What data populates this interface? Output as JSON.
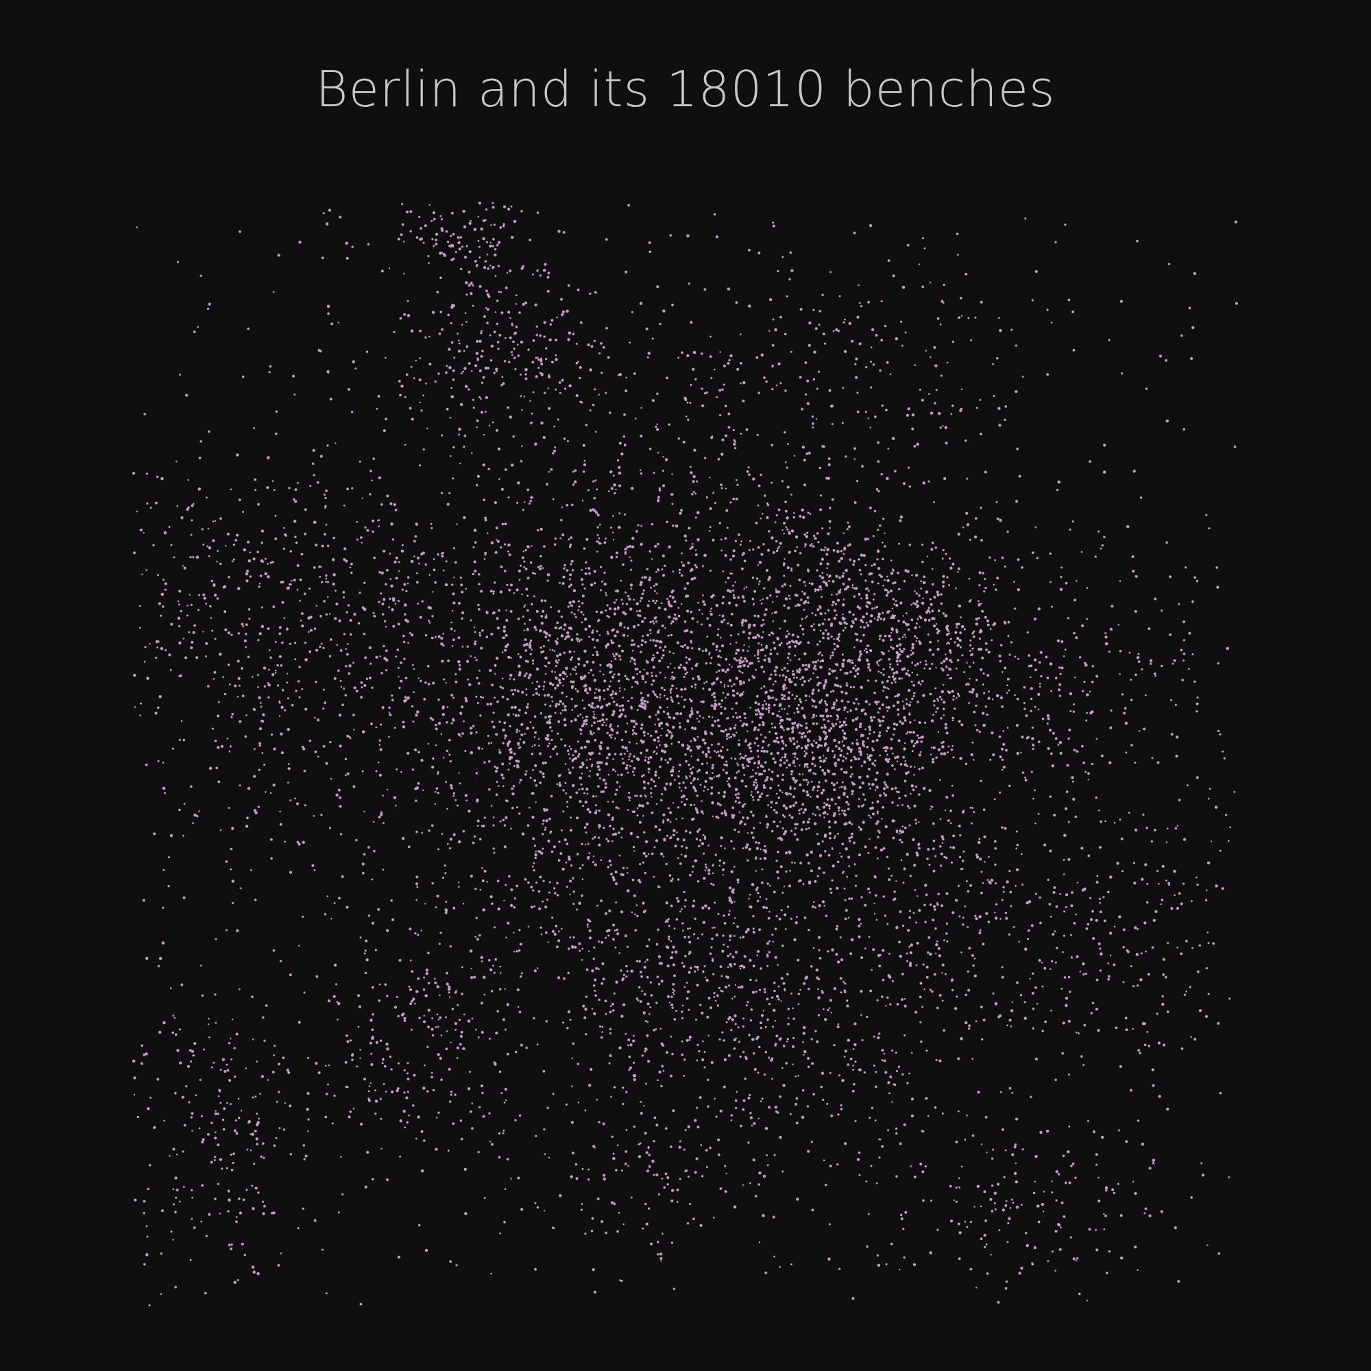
{
  "title": "Berlin and its 18010 benches",
  "colors": {
    "background": "#0f0f10",
    "title_text": "#c9c6c9",
    "bench_dot": "#c79ac8"
  },
  "map": {
    "subject": "Berlin",
    "marker_count": 18010,
    "marker_icon": "dot"
  }
}
